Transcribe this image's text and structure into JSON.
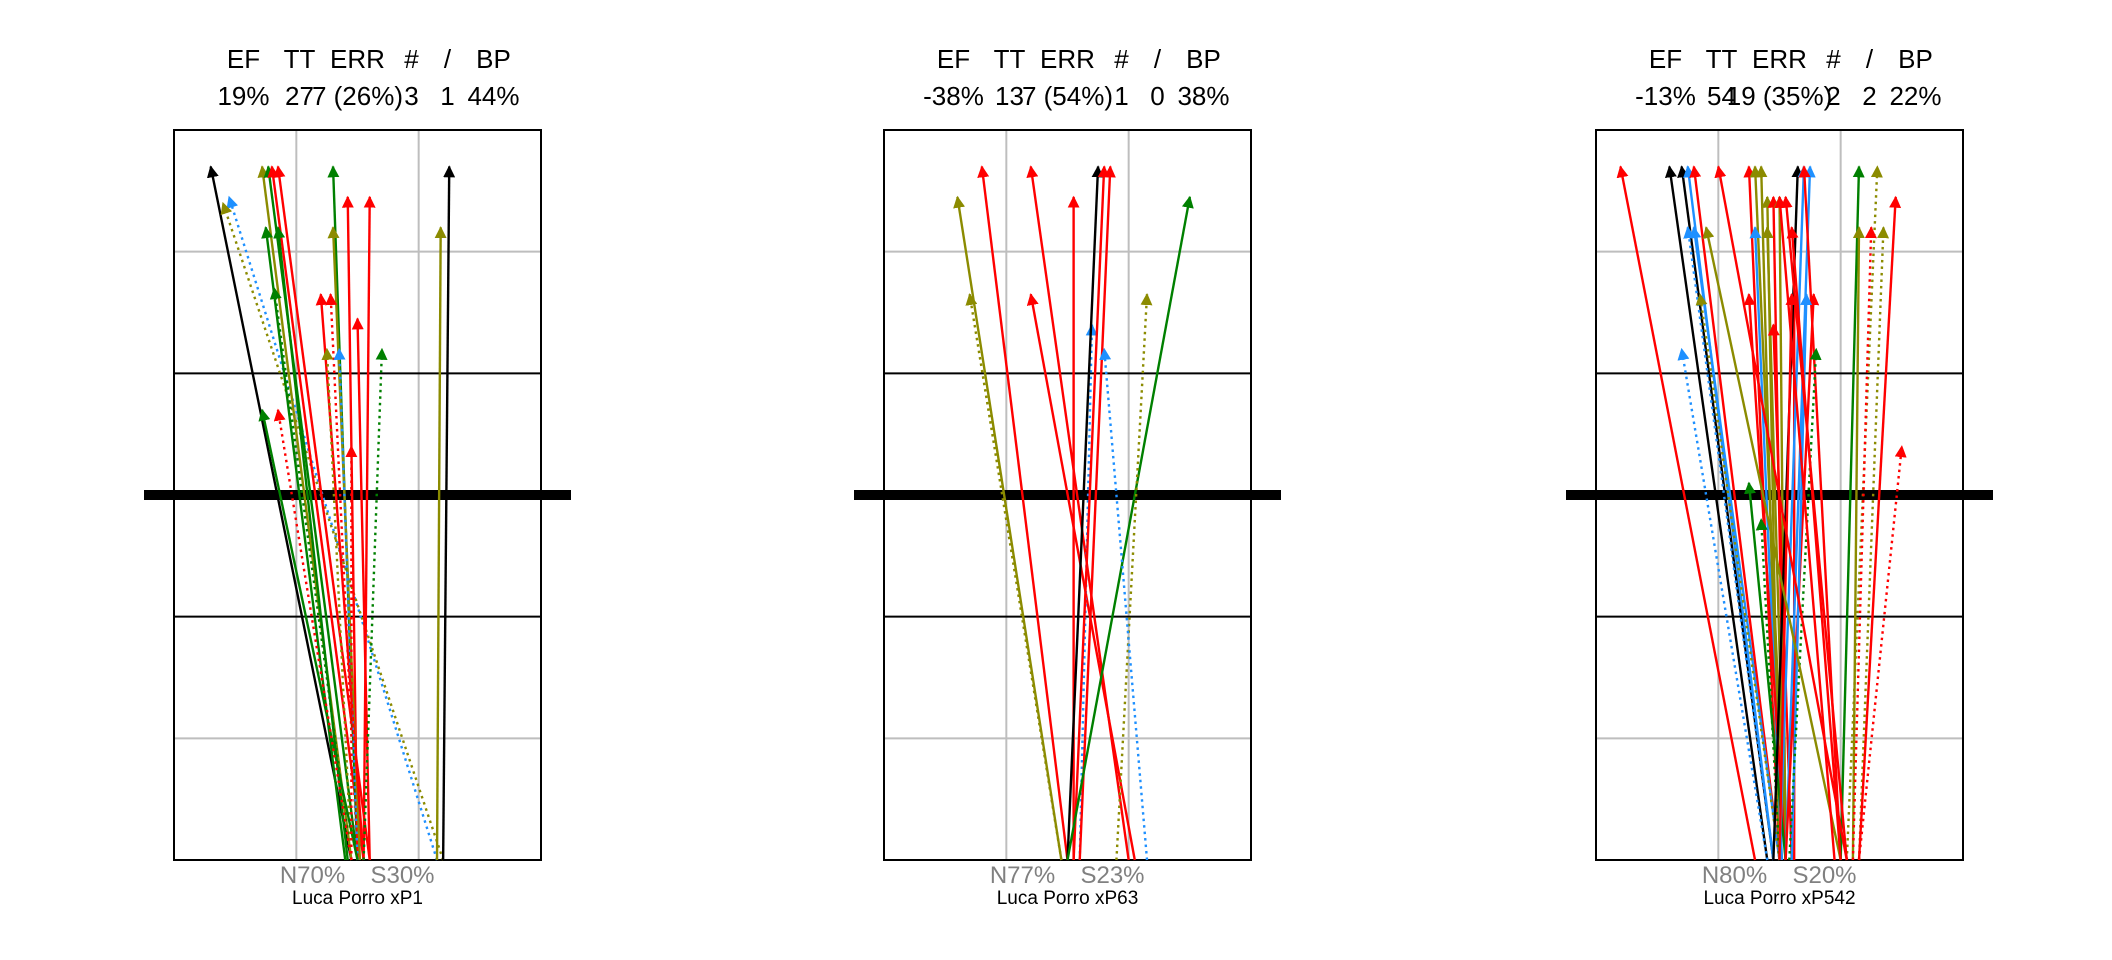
{
  "colors": {
    "grid_major": "#000000",
    "grid_minor": "#bebebe",
    "net": "#000000",
    "N_text": "#808080",
    "palette": {
      "k": "#000000",
      "r": "#ff0000",
      "g": "#008000",
      "o": "#8b8b00",
      "b": "#1e90ff"
    }
  },
  "panels": [
    {
      "header_labels": [
        "EF",
        "TT",
        "ERR",
        "#",
        "/",
        "BP"
      ],
      "header_values": [
        "19%",
        "27",
        "7 (26%)",
        "3",
        "1",
        "44%"
      ],
      "n_label": "N70%",
      "s_label": "S30%",
      "caption": "Luca Porro  xP1",
      "chart_data": {
        "type": "line",
        "axes": {
          "x": [
            0,
            3
          ],
          "y": [
            0,
            6
          ]
        },
        "arrows": [
          {
            "from": [
              1.45,
              0.0
            ],
            "to": [
              0.3,
              5.7
            ],
            "c": "k",
            "d": 0
          },
          {
            "from": [
              2.15,
              0.0
            ],
            "to": [
              0.45,
              5.45
            ],
            "c": "b",
            "d": 1
          },
          {
            "from": [
              2.2,
              0.0
            ],
            "to": [
              0.4,
              5.4
            ],
            "c": "o",
            "d": 1
          },
          {
            "from": [
              1.45,
              0.0
            ],
            "to": [
              0.72,
              5.7
            ],
            "c": "o",
            "d": 0
          },
          {
            "from": [
              1.5,
              0.0
            ],
            "to": [
              0.77,
              5.7
            ],
            "c": "g",
            "d": 0
          },
          {
            "from": [
              1.55,
              0.0
            ],
            "to": [
              0.8,
              5.7
            ],
            "c": "r",
            "d": 0
          },
          {
            "from": [
              1.6,
              0.0
            ],
            "to": [
              0.85,
              5.7
            ],
            "c": "r",
            "d": 0
          },
          {
            "from": [
              1.4,
              0.0
            ],
            "to": [
              0.75,
              5.2
            ],
            "c": "g",
            "d": 0
          },
          {
            "from": [
              1.42,
              0.0
            ],
            "to": [
              0.85,
              5.2
            ],
            "c": "g",
            "d": 0
          },
          {
            "from": [
              1.45,
              0.0
            ],
            "to": [
              0.82,
              4.7
            ],
            "c": "g",
            "d": 1
          },
          {
            "from": [
              1.5,
              0.0
            ],
            "to": [
              1.3,
              5.7
            ],
            "c": "g",
            "d": 0
          },
          {
            "from": [
              1.5,
              0.0
            ],
            "to": [
              1.42,
              5.45
            ],
            "c": "r",
            "d": 0
          },
          {
            "from": [
              1.55,
              0.0
            ],
            "to": [
              1.6,
              5.45
            ],
            "c": "r",
            "d": 0
          },
          {
            "from": [
              1.52,
              0.0
            ],
            "to": [
              1.3,
              5.2
            ],
            "c": "o",
            "d": 0
          },
          {
            "from": [
              1.55,
              0.0
            ],
            "to": [
              1.2,
              4.65
            ],
            "c": "r",
            "d": 0
          },
          {
            "from": [
              1.5,
              0.0
            ],
            "to": [
              1.28,
              4.65
            ],
            "c": "r",
            "d": 1
          },
          {
            "from": [
              1.6,
              0.0
            ],
            "to": [
              1.5,
              4.45
            ],
            "c": "r",
            "d": 0
          },
          {
            "from": [
              1.45,
              0.0
            ],
            "to": [
              1.25,
              4.2
            ],
            "c": "o",
            "d": 1
          },
          {
            "from": [
              1.5,
              0.0
            ],
            "to": [
              1.35,
              4.2
            ],
            "c": "b",
            "d": 1
          },
          {
            "from": [
              1.55,
              0.0
            ],
            "to": [
              1.7,
              4.2
            ],
            "c": "g",
            "d": 1
          },
          {
            "from": [
              1.5,
              0.0
            ],
            "to": [
              0.72,
              3.7
            ],
            "c": "g",
            "d": 0
          },
          {
            "from": [
              1.45,
              0.0
            ],
            "to": [
              0.85,
              3.7
            ],
            "c": "r",
            "d": 1
          },
          {
            "from": [
              1.45,
              0.0
            ],
            "to": [
              1.45,
              3.4
            ],
            "c": "r",
            "d": 1
          },
          {
            "from": [
              2.2,
              0.0
            ],
            "to": [
              2.25,
              5.7
            ],
            "c": "k",
            "d": 0
          },
          {
            "from": [
              2.15,
              0.0
            ],
            "to": [
              2.18,
              5.2
            ],
            "c": "o",
            "d": 0
          }
        ]
      }
    },
    {
      "header_labels": [
        "EF",
        "TT",
        "ERR",
        "#",
        "/",
        "BP"
      ],
      "header_values": [
        "-38%",
        "13",
        "7 (54%)",
        "1",
        "0",
        "38%"
      ],
      "n_label": "N77%",
      "s_label": "S23%",
      "caption": "Luca Porro  xP63",
      "chart_data": {
        "type": "line",
        "axes": {
          "x": [
            0,
            3
          ],
          "y": [
            0,
            6
          ]
        },
        "arrows": [
          {
            "from": [
              1.45,
              0.0
            ],
            "to": [
              0.6,
              5.45
            ],
            "c": "o",
            "d": 0
          },
          {
            "from": [
              1.45,
              0.0
            ],
            "to": [
              0.7,
              4.65
            ],
            "c": "o",
            "d": 1
          },
          {
            "from": [
              1.5,
              0.0
            ],
            "to": [
              0.8,
              5.7
            ],
            "c": "r",
            "d": 0
          },
          {
            "from": [
              2.0,
              0.0
            ],
            "to": [
              1.2,
              5.7
            ],
            "c": "r",
            "d": 0
          },
          {
            "from": [
              2.05,
              0.0
            ],
            "to": [
              1.2,
              4.65
            ],
            "c": "r",
            "d": 0
          },
          {
            "from": [
              1.55,
              0.0
            ],
            "to": [
              1.55,
              5.45
            ],
            "c": "r",
            "d": 0
          },
          {
            "from": [
              1.6,
              0.0
            ],
            "to": [
              1.7,
              4.4
            ],
            "c": "b",
            "d": 1
          },
          {
            "from": [
              1.5,
              0.0
            ],
            "to": [
              1.75,
              5.7
            ],
            "c": "k",
            "d": 0
          },
          {
            "from": [
              1.55,
              0.0
            ],
            "to": [
              1.8,
              5.7
            ],
            "c": "r",
            "d": 0
          },
          {
            "from": [
              1.6,
              0.0
            ],
            "to": [
              1.85,
              5.7
            ],
            "c": "r",
            "d": 0
          },
          {
            "from": [
              1.5,
              0.0
            ],
            "to": [
              2.5,
              5.45
            ],
            "c": "g",
            "d": 0
          },
          {
            "from": [
              1.9,
              0.0
            ],
            "to": [
              2.15,
              4.65
            ],
            "c": "o",
            "d": 1
          },
          {
            "from": [
              2.15,
              0.0
            ],
            "to": [
              1.8,
              4.2
            ],
            "c": "b",
            "d": 1
          }
        ]
      }
    },
    {
      "header_labels": [
        "EF",
        "TT",
        "ERR",
        "#",
        "/",
        "BP"
      ],
      "header_values": [
        "-13%",
        "54",
        "19 (35%)",
        "2",
        "2",
        "22%"
      ],
      "n_label": "N80%",
      "s_label": "S20%",
      "caption": "Luca Porro  xP542",
      "chart_data": {
        "type": "line",
        "axes": {
          "x": [
            0,
            3
          ],
          "y": [
            0,
            6
          ]
        },
        "arrows": [
          {
            "from": [
              1.3,
              0.0
            ],
            "to": [
              0.2,
              5.7
            ],
            "c": "r",
            "d": 0
          },
          {
            "from": [
              1.4,
              0.0
            ],
            "to": [
              0.6,
              5.7
            ],
            "c": "k",
            "d": 0
          },
          {
            "from": [
              1.45,
              0.0
            ],
            "to": [
              0.7,
              5.7
            ],
            "c": "k",
            "d": 0
          },
          {
            "from": [
              1.45,
              0.0
            ],
            "to": [
              0.75,
              5.7
            ],
            "c": "b",
            "d": 0
          },
          {
            "from": [
              1.5,
              0.0
            ],
            "to": [
              0.8,
              5.7
            ],
            "c": "r",
            "d": 0
          },
          {
            "from": [
              1.5,
              0.0
            ],
            "to": [
              0.8,
              5.2
            ],
            "c": "b",
            "d": 0
          },
          {
            "from": [
              1.45,
              0.0
            ],
            "to": [
              0.75,
              5.2
            ],
            "c": "b",
            "d": 1
          },
          {
            "from": [
              1.4,
              0.0
            ],
            "to": [
              0.7,
              4.2
            ],
            "c": "b",
            "d": 1
          },
          {
            "from": [
              1.5,
              0.0
            ],
            "to": [
              0.85,
              4.65
            ],
            "c": "o",
            "d": 1
          },
          {
            "from": [
              1.5,
              0.0
            ],
            "to": [
              1.25,
              5.7
            ],
            "c": "r",
            "d": 0
          },
          {
            "from": [
              1.55,
              0.0
            ],
            "to": [
              1.3,
              5.7
            ],
            "c": "o",
            "d": 0
          },
          {
            "from": [
              1.5,
              0.0
            ],
            "to": [
              1.35,
              5.7
            ],
            "c": "o",
            "d": 0
          },
          {
            "from": [
              1.5,
              0.0
            ],
            "to": [
              1.4,
              5.45
            ],
            "c": "o",
            "d": 0
          },
          {
            "from": [
              1.55,
              0.0
            ],
            "to": [
              1.45,
              5.45
            ],
            "c": "r",
            "d": 0
          },
          {
            "from": [
              1.55,
              0.0
            ],
            "to": [
              1.5,
              5.45
            ],
            "c": "o",
            "d": 0
          },
          {
            "from": [
              1.52,
              0.0
            ],
            "to": [
              1.3,
              5.2
            ],
            "c": "b",
            "d": 0
          },
          {
            "from": [
              1.55,
              0.0
            ],
            "to": [
              1.4,
              5.2
            ],
            "c": "o",
            "d": 0
          },
          {
            "from": [
              1.55,
              0.0
            ],
            "to": [
              1.25,
              4.65
            ],
            "c": "r",
            "d": 0
          },
          {
            "from": [
              1.6,
              0.0
            ],
            "to": [
              1.45,
              4.4
            ],
            "c": "r",
            "d": 0
          },
          {
            "from": [
              1.62,
              0.0
            ],
            "to": [
              1.62,
              4.65
            ],
            "c": "r",
            "d": 0
          },
          {
            "from": [
              1.55,
              0.0
            ],
            "to": [
              1.25,
              3.1
            ],
            "c": "g",
            "d": 0
          },
          {
            "from": [
              1.5,
              0.0
            ],
            "to": [
              1.35,
              2.8
            ],
            "c": "g",
            "d": 1
          },
          {
            "from": [
              1.45,
              0.0
            ],
            "to": [
              1.65,
              5.7
            ],
            "c": "k",
            "d": 0
          },
          {
            "from": [
              1.5,
              0.0
            ],
            "to": [
              1.7,
              5.7
            ],
            "c": "b",
            "d": 0
          },
          {
            "from": [
              1.55,
              0.0
            ],
            "to": [
              1.75,
              5.7
            ],
            "c": "b",
            "d": 0
          },
          {
            "from": [
              2.0,
              0.0
            ],
            "to": [
              1.7,
              5.7
            ],
            "c": "r",
            "d": 0
          },
          {
            "from": [
              1.5,
              0.0
            ],
            "to": [
              1.6,
              4.65
            ],
            "c": "r",
            "d": 0
          },
          {
            "from": [
              1.55,
              0.0
            ],
            "to": [
              1.78,
              4.65
            ],
            "c": "r",
            "d": 0
          },
          {
            "from": [
              1.6,
              0.0
            ],
            "to": [
              1.72,
              4.65
            ],
            "c": "b",
            "d": 0
          },
          {
            "from": [
              1.58,
              0.0
            ],
            "to": [
              1.8,
              4.2
            ],
            "c": "g",
            "d": 1
          },
          {
            "from": [
              2.0,
              0.0
            ],
            "to": [
              2.15,
              5.7
            ],
            "c": "g",
            "d": 0
          },
          {
            "from": [
              2.05,
              0.0
            ],
            "to": [
              2.3,
              5.7
            ],
            "c": "o",
            "d": 1
          },
          {
            "from": [
              2.1,
              0.0
            ],
            "to": [
              2.15,
              5.2
            ],
            "c": "o",
            "d": 0
          },
          {
            "from": [
              2.1,
              0.0
            ],
            "to": [
              2.25,
              5.2
            ],
            "c": "r",
            "d": 1
          },
          {
            "from": [
              2.15,
              0.0
            ],
            "to": [
              2.35,
              5.2
            ],
            "c": "o",
            "d": 1
          },
          {
            "from": [
              2.15,
              0.0
            ],
            "to": [
              2.45,
              5.45
            ],
            "c": "r",
            "d": 0
          },
          {
            "from": [
              2.15,
              0.0
            ],
            "to": [
              2.5,
              3.4
            ],
            "c": "r",
            "d": 1
          },
          {
            "from": [
              2.05,
              0.0
            ],
            "to": [
              1.0,
              5.7
            ],
            "c": "r",
            "d": 0
          },
          {
            "from": [
              2.0,
              0.0
            ],
            "to": [
              0.9,
              5.2
            ],
            "c": "o",
            "d": 0
          },
          {
            "from": [
              1.95,
              0.0
            ],
            "to": [
              1.5,
              5.45
            ],
            "c": "r",
            "d": 0
          },
          {
            "from": [
              2.05,
              0.0
            ],
            "to": [
              1.55,
              5.45
            ],
            "c": "r",
            "d": 0
          },
          {
            "from": [
              2.0,
              0.0
            ],
            "to": [
              1.6,
              5.2
            ],
            "c": "r",
            "d": 0
          }
        ]
      }
    }
  ]
}
